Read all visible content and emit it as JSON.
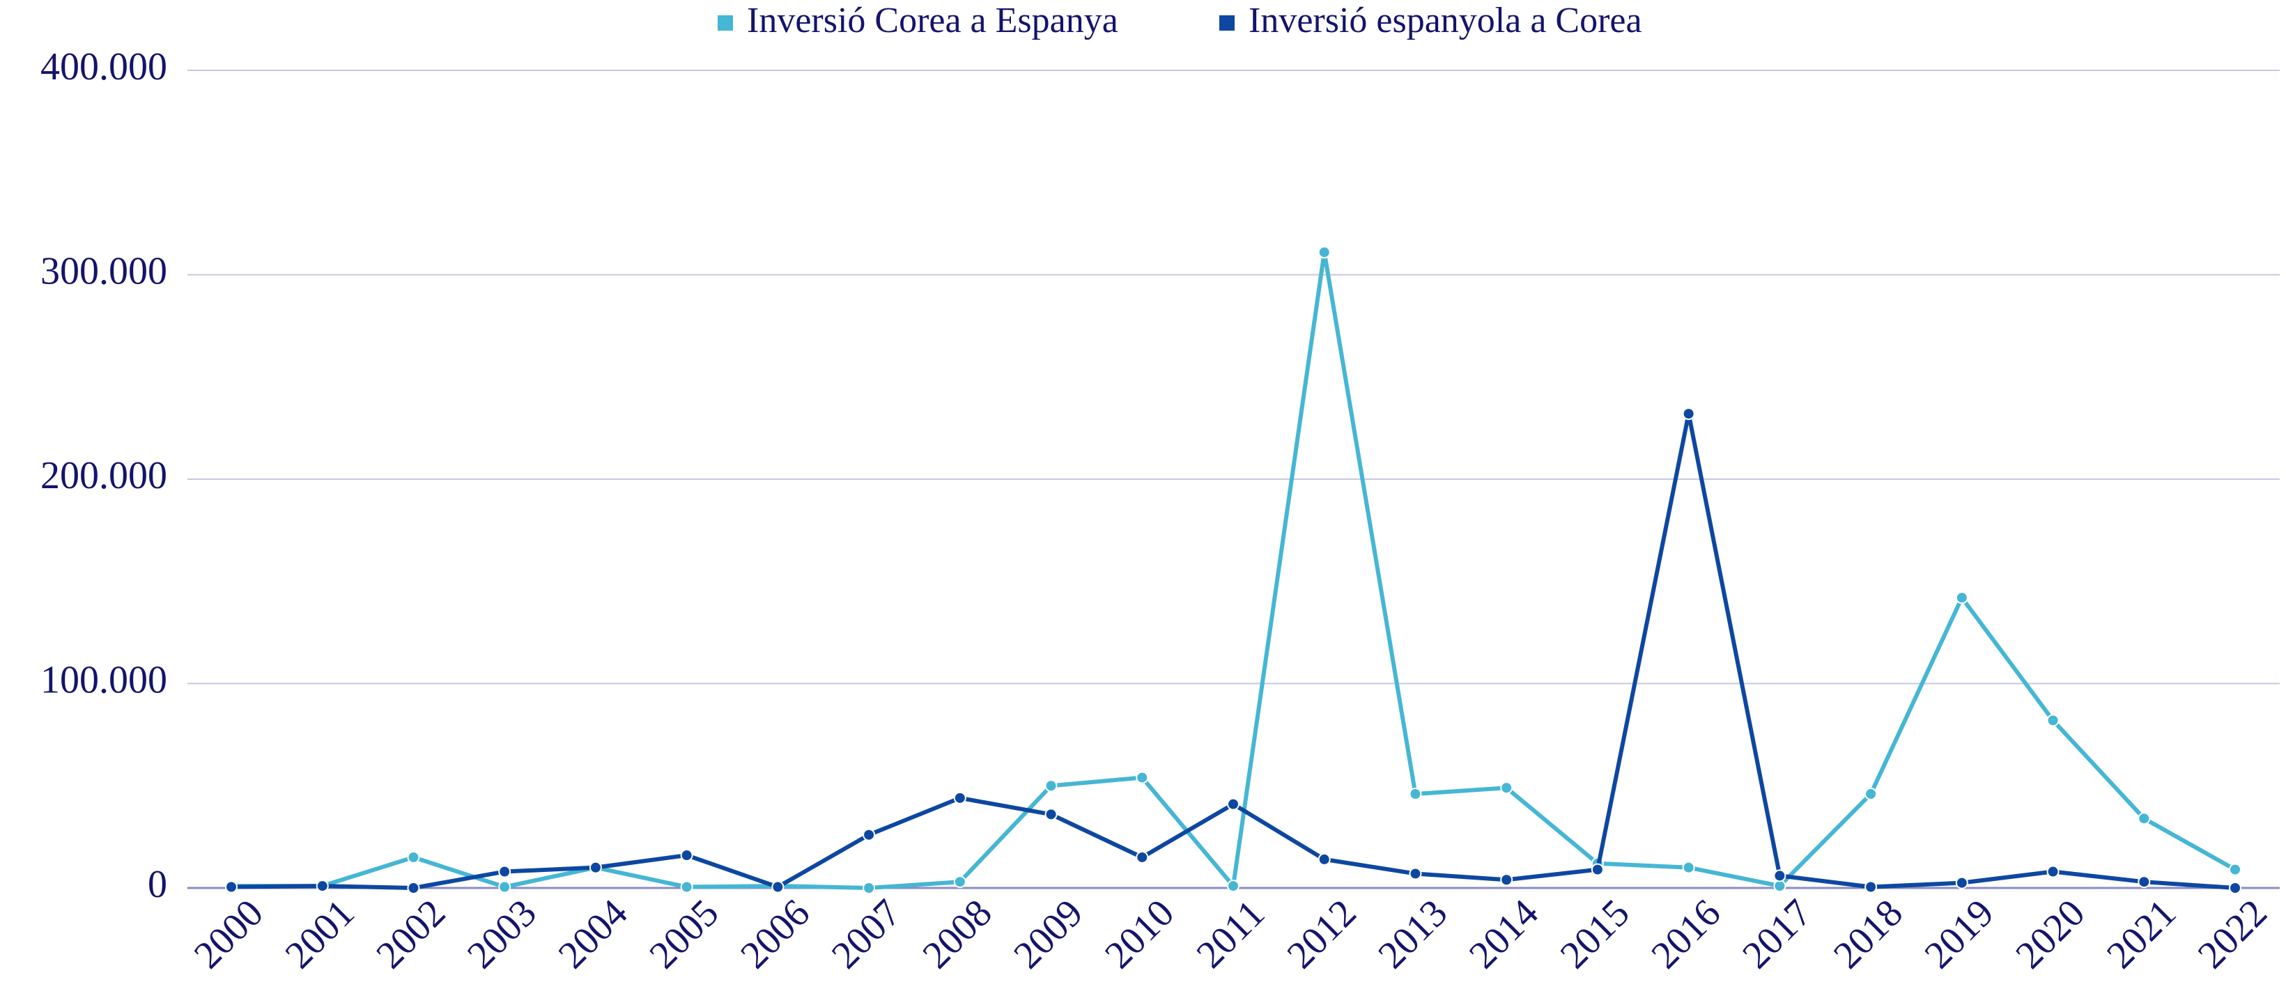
{
  "chart_data": {
    "type": "line",
    "categories": [
      "2000",
      "2001",
      "2002",
      "2003",
      "2004",
      "2005",
      "2006",
      "2007",
      "2008",
      "2009",
      "2010",
      "2011",
      "2012",
      "2013",
      "2014",
      "2015",
      "2016",
      "2017",
      "2018",
      "2019",
      "2020",
      "2021",
      "2022"
    ],
    "series": [
      {
        "name": "Inversió Corea a Espanya",
        "color": "#45b6d4",
        "values": [
          1000,
          1000,
          15000,
          500,
          10000,
          500,
          1000,
          0,
          3000,
          50000,
          54000,
          1000,
          311000,
          46000,
          49000,
          12000,
          10000,
          1000,
          46000,
          142000,
          82000,
          34000,
          9000
        ]
      },
      {
        "name": "Inversió espanyola a Corea",
        "color": "#0d47a1",
        "values": [
          500,
          1000,
          0,
          8000,
          10000,
          16000,
          500,
          26000,
          44000,
          36000,
          15000,
          41000,
          14000,
          7000,
          4000,
          9000,
          232000,
          6000,
          500,
          2500,
          8000,
          3000,
          0
        ]
      }
    ],
    "ylim": [
      0,
      400000
    ],
    "yticks": [
      0,
      {
        "value": 100000,
        "label": "100.000"
      },
      {
        "value": 200000,
        "label": "200.000"
      },
      {
        "value": 300000,
        "label": "300.000"
      },
      {
        "value": 400000,
        "label": "400.000"
      }
    ],
    "grid": true,
    "legend": "top"
  }
}
